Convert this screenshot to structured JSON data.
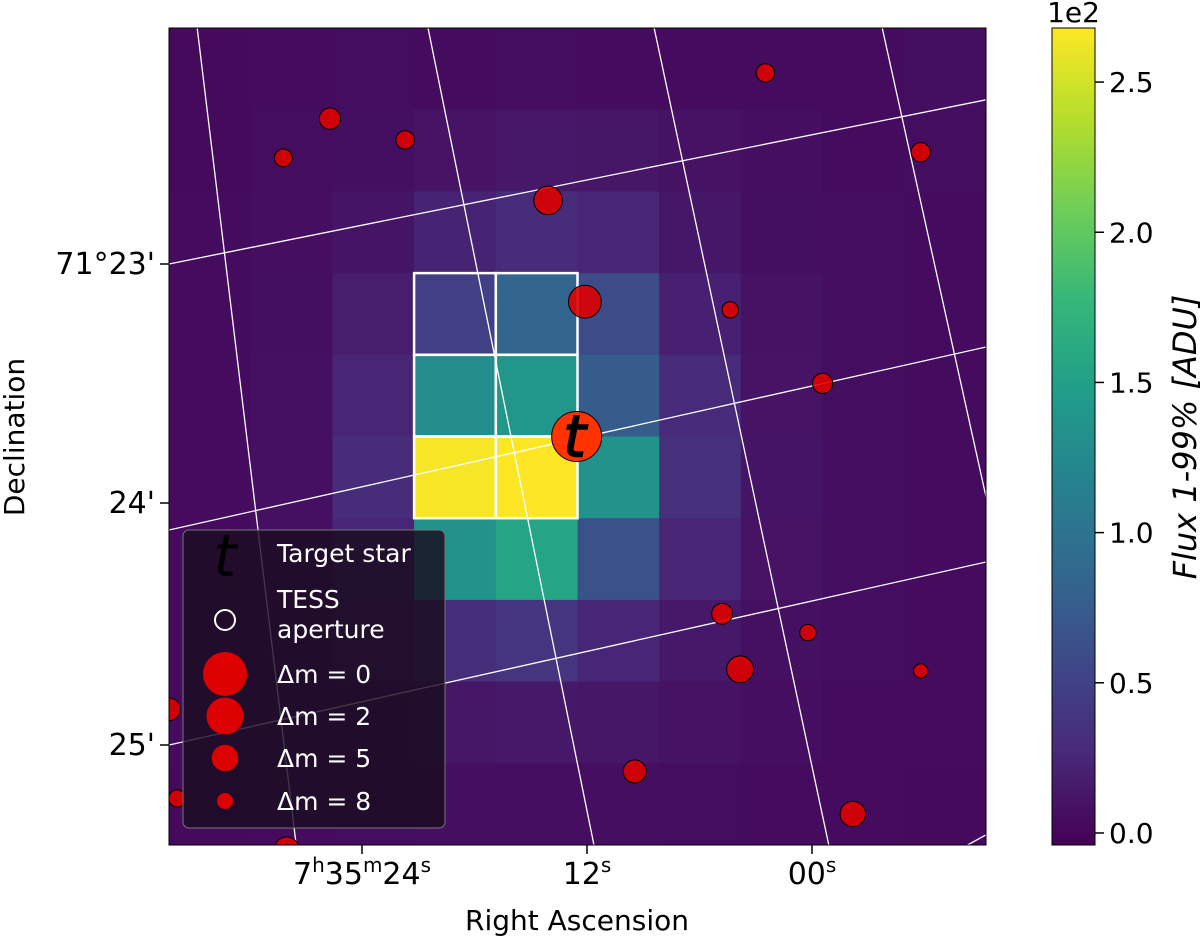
{
  "chart_data": {
    "type": "heatmap",
    "title": "",
    "xlabel": "Right Ascension",
    "ylabel": "Declination",
    "x_ticks": [
      {
        "h": "7",
        "m": "35",
        "s": "24"
      },
      {
        "h": "",
        "m": "",
        "s": "12"
      },
      {
        "h": "",
        "m": "",
        "s": "00"
      }
    ],
    "y_ticks": [
      "71°23'",
      "24'",
      "25'"
    ],
    "colorbar": {
      "label": "Flux 1-99% [ADU]",
      "exponent_label": "1e2",
      "range": [
        -0.04,
        2.68
      ],
      "ticks": [
        "0.0",
        "0.5",
        "1.0",
        "1.5",
        "2.0",
        "2.5"
      ],
      "tick_values": [
        0.0,
        0.5,
        1.0,
        1.5,
        2.0,
        2.5
      ],
      "colormap": "viridis"
    },
    "flux_units": "x1e2 ADU",
    "flux_grid": [
      [
        0.03,
        0.04,
        0.05,
        0.04,
        0.05,
        0.04,
        0.04,
        0.04,
        0.04,
        0.07
      ],
      [
        0.03,
        0.05,
        0.07,
        0.1,
        0.14,
        0.12,
        0.09,
        0.06,
        0.04,
        0.05
      ],
      [
        0.04,
        0.06,
        0.11,
        0.22,
        0.3,
        0.24,
        0.13,
        0.07,
        0.05,
        0.04
      ],
      [
        0.04,
        0.07,
        0.18,
        0.48,
        0.85,
        0.58,
        0.2,
        0.09,
        0.05,
        0.04
      ],
      [
        0.04,
        0.08,
        0.24,
        1.3,
        1.38,
        0.75,
        0.28,
        0.1,
        0.05,
        0.04
      ],
      [
        0.04,
        0.08,
        0.3,
        2.65,
        2.68,
        1.35,
        0.34,
        0.11,
        0.06,
        0.04
      ],
      [
        0.04,
        0.08,
        0.25,
        1.35,
        1.55,
        0.65,
        0.24,
        0.1,
        0.05,
        0.04
      ],
      [
        0.04,
        0.06,
        0.15,
        0.32,
        0.38,
        0.25,
        0.14,
        0.08,
        0.05,
        0.04
      ],
      [
        0.04,
        0.05,
        0.08,
        0.12,
        0.14,
        0.12,
        0.09,
        0.06,
        0.04,
        0.04
      ],
      [
        0.03,
        0.04,
        0.05,
        0.06,
        0.06,
        0.06,
        0.05,
        0.04,
        0.04,
        0.03
      ]
    ],
    "aperture_pixels": [
      [
        3,
        3
      ],
      [
        3,
        4
      ],
      [
        4,
        3
      ],
      [
        4,
        4
      ],
      [
        5,
        3
      ],
      [
        5,
        4
      ]
    ],
    "target": {
      "label": "t"
    },
    "stars_dm": [
      {
        "px": 1.4,
        "py": 1.59,
        "dm": 7.5
      },
      {
        "px": 1.97,
        "py": 1.11,
        "dm": 6.5
      },
      {
        "px": 2.89,
        "py": 1.37,
        "dm": 7.3
      },
      {
        "px": 4.64,
        "py": 2.11,
        "dm": 4.4
      },
      {
        "px": 7.3,
        "py": 0.55,
        "dm": 7.3
      },
      {
        "px": 9.2,
        "py": 1.52,
        "dm": 7.1
      },
      {
        "px": 5.09,
        "py": 3.35,
        "dm": 3.2
      },
      {
        "px": 6.87,
        "py": 3.45,
        "dm": 7.9
      },
      {
        "px": 8.0,
        "py": 4.35,
        "dm": 6.8
      },
      {
        "px": 6.77,
        "py": 7.17,
        "dm": 6.6
      },
      {
        "px": 7.82,
        "py": 7.4,
        "dm": 7.9
      },
      {
        "px": 6.99,
        "py": 7.85,
        "dm": 4.9
      },
      {
        "px": 9.2,
        "py": 7.87,
        "dm": 8.5
      },
      {
        "px": 5.7,
        "py": 9.1,
        "dm": 6.0
      },
      {
        "px": 8.37,
        "py": 9.62,
        "dm": 5.3
      },
      {
        "px": 0.0,
        "py": 8.34,
        "dm": 6.1
      },
      {
        "px": 0.1,
        "py": 9.43,
        "dm": 7.7
      },
      {
        "px": 1.44,
        "py": 10.05,
        "dm": 5.6
      }
    ],
    "legend": {
      "placement": "bottom-left",
      "items": [
        {
          "kind": "target",
          "label": "Target star"
        },
        {
          "kind": "aperture",
          "label": "TESS aperture"
        },
        {
          "kind": "dm",
          "dm": 0,
          "label": "Δm =  0"
        },
        {
          "kind": "dm",
          "dm": 2,
          "label": "Δm =  2"
        },
        {
          "kind": "dm",
          "dm": 5,
          "label": "Δm =  5"
        },
        {
          "kind": "dm",
          "dm": 8,
          "label": "Δm =  8"
        }
      ]
    },
    "grid": true,
    "colors": {
      "star_fill": "#dd0000",
      "target_fill": "#ff3300",
      "target_letter": "#ffff00",
      "aperture_edge": "#ffffff",
      "grid_lines": "#ffffff",
      "legend_bg": "#1a0c20"
    }
  }
}
